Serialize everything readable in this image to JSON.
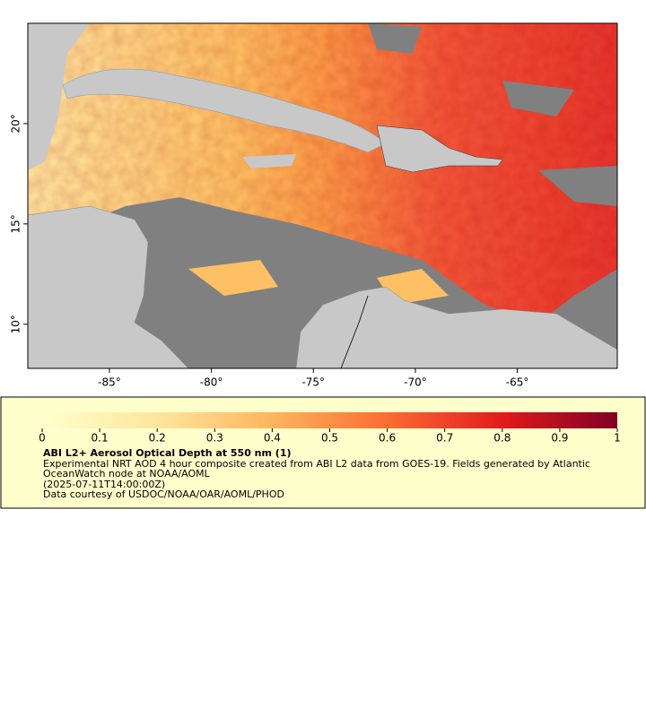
{
  "map": {
    "xlim": [
      -89,
      -60.1
    ],
    "ylim": [
      7.8,
      25
    ],
    "xticks": [
      {
        "value": -85,
        "label": "-85°"
      },
      {
        "value": -80,
        "label": "-80°"
      },
      {
        "value": -75,
        "label": "-75°"
      },
      {
        "value": -70,
        "label": "-70°"
      },
      {
        "value": -65,
        "label": "-65°"
      }
    ],
    "yticks": [
      {
        "value": 10,
        "label": "10°"
      },
      {
        "value": 15,
        "label": "15°"
      },
      {
        "value": 20,
        "label": "20°"
      }
    ]
  },
  "colorbar": {
    "range": [
      0,
      1
    ],
    "ticks": [
      0,
      0.1,
      0.2,
      0.3,
      0.4,
      0.5,
      0.6,
      0.7,
      0.8,
      0.9,
      1
    ],
    "title": "ABI L2+ Aerosol Optical Depth at 550 nm (1)",
    "description": "Experimental NRT AOD 4 hour composite created from ABI L2 data from GOES-19. Fields generated by Atlantic OceanWatch node at NOAA/AOML",
    "time": "(2025-07-11T14:00:00Z)",
    "credit": "Data courtesy of USDOC/NOAA/OAR/AOML/PHOD"
  }
}
